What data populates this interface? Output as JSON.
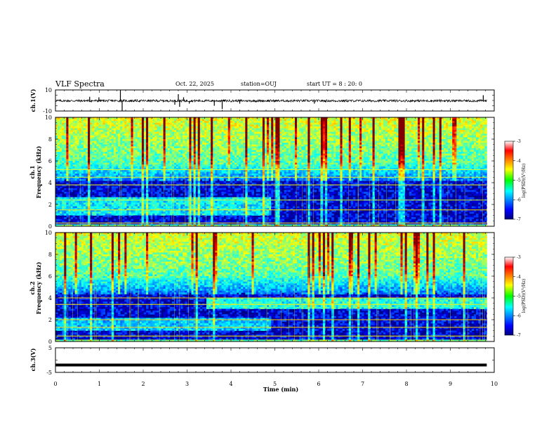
{
  "header": {
    "title": "VLF Spectra",
    "date": "Oct. 22, 2025",
    "station": "station=OUJ",
    "start": "start UT =  8 : 20: 0"
  },
  "chart_data": [
    {
      "type": "line",
      "name": "ch1-waveform",
      "ylabel": "ch.1(V)",
      "ylim": [
        -10,
        10
      ],
      "yticks": [
        "10",
        "-10"
      ],
      "xlim": [
        0,
        10
      ],
      "baseline": -0.3,
      "spikes": [
        {
          "t": 0.78,
          "v": 3.5
        },
        {
          "t": 0.99,
          "v": 3.0
        },
        {
          "t": 1.48,
          "v": 10
        },
        {
          "t": 1.52,
          "v": -10
        },
        {
          "t": 2.72,
          "v": -4
        },
        {
          "t": 2.8,
          "v": 6
        },
        {
          "t": 2.83,
          "v": -6
        },
        {
          "t": 2.92,
          "v": 3
        },
        {
          "t": 3.05,
          "v": -3
        },
        {
          "t": 3.62,
          "v": -5
        },
        {
          "t": 3.8,
          "v": -8
        },
        {
          "t": 4.2,
          "v": -3
        },
        {
          "t": 5.9,
          "v": -3
        },
        {
          "t": 9.75,
          "v": 5
        }
      ]
    },
    {
      "type": "heatmap",
      "name": "ch1-spectrogram",
      "ylabel": "Frequency (kHz)",
      "channel_label": "ch.1",
      "ylim": [
        0,
        10
      ],
      "yticks": [
        "0",
        "2",
        "4",
        "6",
        "8",
        "10"
      ],
      "xlim": [
        0,
        9.83
      ],
      "colorbar": {
        "label": "log(PSD)(V²/Hz)",
        "range": [
          -7,
          -3
        ],
        "ticks": [
          "-3",
          "-4",
          "-5",
          "-6",
          "-7"
        ]
      },
      "features": {
        "noise_floor_kHz": 5.6,
        "line_frequencies_kHz": [
          0.3,
          1.5,
          2.4,
          4.5,
          5.2,
          3.8
        ]
      }
    },
    {
      "type": "heatmap",
      "name": "ch2-spectrogram",
      "ylabel": "Frequency (kHz)",
      "channel_label": "ch.2",
      "ylim": [
        0,
        10
      ],
      "yticks": [
        "0",
        "2",
        "4",
        "6",
        "8",
        "10"
      ],
      "xlim": [
        0,
        9.83
      ],
      "colorbar": {
        "label": "log(PSD)(V²/Hz)",
        "range": [
          -7,
          -3
        ],
        "ticks": [
          "-3",
          "-4",
          "-5",
          "-6",
          "-7"
        ]
      },
      "features": {
        "noise_floor_kHz": 5.8,
        "line_frequencies_kHz": [
          1.3,
          2.0,
          3.4,
          4.0,
          0.5
        ]
      }
    },
    {
      "type": "line",
      "name": "ch3-waveform",
      "ylabel": "ch.3(V)",
      "ylim": [
        -5,
        5
      ],
      "yticks": [
        "5",
        "-5"
      ],
      "xlim": [
        0,
        10
      ],
      "baseline": -2.0
    }
  ],
  "xaxis": {
    "title": "Time (min)",
    "ticks": [
      "0",
      "1",
      "2",
      "3",
      "4",
      "5",
      "6",
      "7",
      "8",
      "9",
      "10"
    ]
  }
}
